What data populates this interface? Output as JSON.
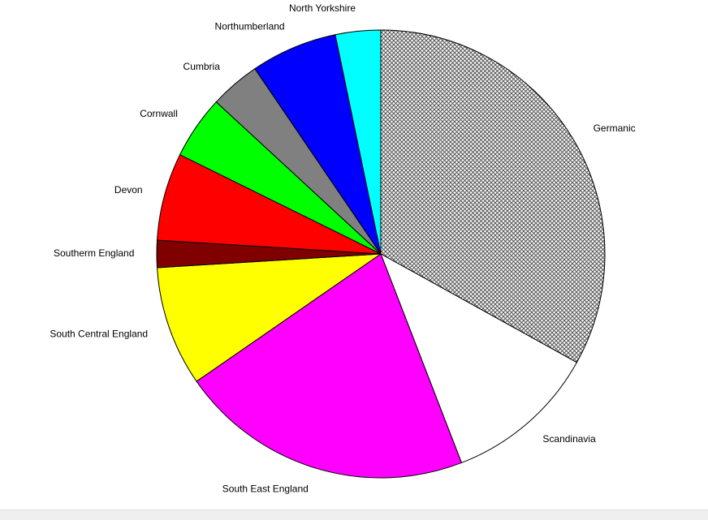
{
  "chart_data": {
    "type": "pie",
    "direction": "clockwise from 12 o'clock",
    "slices": [
      {
        "label": "Germanic",
        "value": 35.5,
        "color": "#b0b0b0",
        "fill": "cross-hatched"
      },
      {
        "label": "Scandinavia",
        "value": 11.9,
        "color": "#ffffff"
      },
      {
        "label": "South East England",
        "value": 22.8,
        "color": "#ff00ff"
      },
      {
        "label": "South Central England",
        "value": 9.3,
        "color": "#ffff00"
      },
      {
        "label": "Southerm England",
        "value": 2.1,
        "color": "#800000"
      },
      {
        "label": "Devon",
        "value": 6.8,
        "color": "#ff0000"
      },
      {
        "label": "Cornwall",
        "value": 4.9,
        "color": "#00ff00"
      },
      {
        "label": "Cumbria",
        "value": 3.9,
        "color": "#808080"
      },
      {
        "label": "Northumberland",
        "value": 6.7,
        "color": "#0000ff"
      },
      {
        "label": "North Yorkshire",
        "value": 3.5,
        "color": "#00ffff"
      }
    ]
  }
}
